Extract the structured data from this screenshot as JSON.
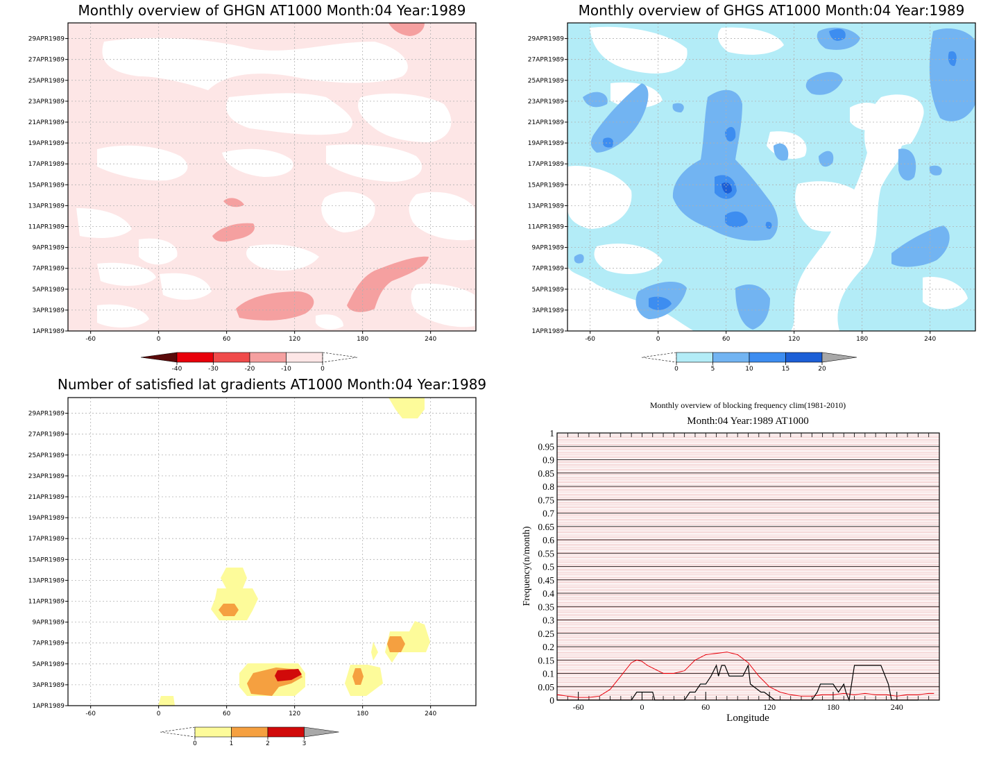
{
  "panels": [
    {
      "id": "ghgn",
      "type": "heatmap",
      "title": "Monthly overview of GHGN AT1000 Month:04 Year:1989",
      "x_ticks": [
        "-60",
        "0",
        "60",
        "120",
        "180",
        "240"
      ],
      "x_tick_values": [
        -60,
        0,
        60,
        120,
        180,
        240
      ],
      "y_ticks": [
        "1APR1989",
        "3APR1989",
        "5APR1989",
        "7APR1989",
        "9APR1989",
        "11APR1989",
        "13APR1989",
        "15APR1989",
        "17APR1989",
        "19APR1989",
        "21APR1989",
        "23APR1989",
        "25APR1989",
        "27APR1989",
        "29APR1989"
      ],
      "xlim": [
        -80,
        280
      ],
      "ylim": [
        1,
        30.5
      ],
      "colorbar": {
        "labels": [
          "-40",
          "-30",
          "-20",
          "-10",
          "0"
        ],
        "colors": [
          "#5a0a0a",
          "#e8000b",
          "#f04b4b",
          "#f5a0a0",
          "#fde6e6"
        ],
        "values": [
          -40,
          -30,
          -20,
          -10,
          0
        ]
      },
      "regions": [
        {
          "level": "-10",
          "color": "#fde6e6"
        },
        {
          "level": "-20",
          "color": "#f5a0a0"
        }
      ]
    },
    {
      "id": "ghgs",
      "type": "heatmap",
      "title": "Monthly overview of GHGS AT1000 Month:04 Year:1989",
      "x_ticks": [
        "-60",
        "0",
        "60",
        "120",
        "180",
        "240"
      ],
      "x_tick_values": [
        -60,
        0,
        60,
        120,
        180,
        240
      ],
      "y_ticks": [
        "1APR1989",
        "3APR1989",
        "5APR1989",
        "7APR1989",
        "9APR1989",
        "11APR1989",
        "13APR1989",
        "15APR1989",
        "17APR1989",
        "19APR1989",
        "21APR1989",
        "23APR1989",
        "25APR1989",
        "27APR1989",
        "29APR1989"
      ],
      "xlim": [
        -80,
        280
      ],
      "ylim": [
        1,
        30.5
      ],
      "colorbar": {
        "labels": [
          "0",
          "5",
          "10",
          "15",
          "20"
        ],
        "colors": [
          "#b3ecf7",
          "#72b4f2",
          "#3d8df0",
          "#1c5fd6",
          "#a8a8a8"
        ],
        "values": [
          0,
          5,
          10,
          15,
          20
        ]
      }
    },
    {
      "id": "lat",
      "type": "heatmap",
      "title": "Number of satisfied lat gradients AT1000 Month:04 Year:1989",
      "x_ticks": [
        "-60",
        "0",
        "60",
        "120",
        "180",
        "240"
      ],
      "x_tick_values": [
        -60,
        0,
        60,
        120,
        180,
        240
      ],
      "y_ticks": [
        "1APR1989",
        "3APR1989",
        "5APR1989",
        "7APR1989",
        "9APR1989",
        "11APR1989",
        "13APR1989",
        "15APR1989",
        "17APR1989",
        "19APR1989",
        "21APR1989",
        "23APR1989",
        "25APR1989",
        "27APR1989",
        "29APR1989"
      ],
      "xlim": [
        -80,
        280
      ],
      "ylim": [
        1,
        30.5
      ],
      "colorbar": {
        "labels": [
          "0",
          "1",
          "2",
          "3"
        ],
        "colors": [
          "#fdfb9a",
          "#f5a040",
          "#d10a0a",
          "#a8a8a8"
        ],
        "values": [
          0,
          1,
          2,
          3
        ]
      }
    }
  ],
  "chart_data": {
    "type": "line",
    "title": "Monthly overview of blocking frequency clim(1981-2010)",
    "subtitle": "Month:04 Year:1989  AT1000",
    "xlabel": "Longitude",
    "ylabel": "Frequency(n/month)",
    "xlim": [
      -80,
      280
    ],
    "ylim": [
      0,
      1
    ],
    "x_ticks": [
      "-60",
      "0",
      "60",
      "120",
      "180",
      "240"
    ],
    "x_tick_values": [
      -60,
      0,
      60,
      120,
      180,
      240
    ],
    "y_ticks": [
      "0",
      "0.05",
      "0.1",
      "0.15",
      "0.2",
      "0.25",
      "0.3",
      "0.35",
      "0.4",
      "0.45",
      "0.5",
      "0.55",
      "0.6",
      "0.65",
      "0.7",
      "0.75",
      "0.8",
      "0.85",
      "0.9",
      "0.95",
      "1"
    ],
    "y_tick_values": [
      0,
      0.05,
      0.1,
      0.15,
      0.2,
      0.25,
      0.3,
      0.35,
      0.4,
      0.45,
      0.5,
      0.55,
      0.6,
      0.65,
      0.7,
      0.75,
      0.8,
      0.85,
      0.9,
      0.95,
      1
    ],
    "series": [
      {
        "color": "#e8000b",
        "x": [
          -80,
          -70,
          -60,
          -50,
          -40,
          -30,
          -20,
          -10,
          -5,
          0,
          5,
          10,
          20,
          30,
          40,
          50,
          60,
          70,
          80,
          90,
          100,
          110,
          120,
          130,
          140,
          150,
          160,
          170,
          180,
          190,
          200,
          210,
          220,
          230,
          240,
          250,
          260,
          270,
          275
        ],
        "y": [
          0.02,
          0.015,
          0.01,
          0.01,
          0.015,
          0.04,
          0.09,
          0.14,
          0.15,
          0.145,
          0.13,
          0.12,
          0.1,
          0.1,
          0.11,
          0.15,
          0.17,
          0.175,
          0.18,
          0.17,
          0.14,
          0.09,
          0.05,
          0.03,
          0.02,
          0.015,
          0.015,
          0.02,
          0.02,
          0.025,
          0.02,
          0.025,
          0.02,
          0.02,
          0.015,
          0.02,
          0.02,
          0.025,
          0.025
        ]
      },
      {
        "color": "#000000",
        "x": [
          -80,
          -10,
          -5,
          0,
          10,
          12,
          40,
          45,
          50,
          55,
          60,
          65,
          70,
          72,
          75,
          78,
          82,
          85,
          95,
          100,
          102,
          112,
          115,
          125,
          130,
          135,
          160,
          165,
          168,
          180,
          185,
          190,
          192,
          195,
          200,
          202,
          205,
          210,
          215,
          220,
          225,
          232,
          235,
          240,
          260
        ],
        "y": [
          0,
          0,
          0.03,
          0.03,
          0.03,
          0,
          0,
          0.03,
          0.03,
          0.06,
          0.06,
          0.09,
          0.13,
          0.09,
          0.13,
          0.13,
          0.09,
          0.09,
          0.09,
          0.13,
          0.06,
          0.03,
          0.03,
          0,
          0,
          0,
          0,
          0.03,
          0.06,
          0.06,
          0.03,
          0.06,
          0.03,
          0,
          0.13,
          0.13,
          0.13,
          0.13,
          0.13,
          0.13,
          0.13,
          0.06,
          0,
          0,
          0
        ]
      }
    ]
  }
}
